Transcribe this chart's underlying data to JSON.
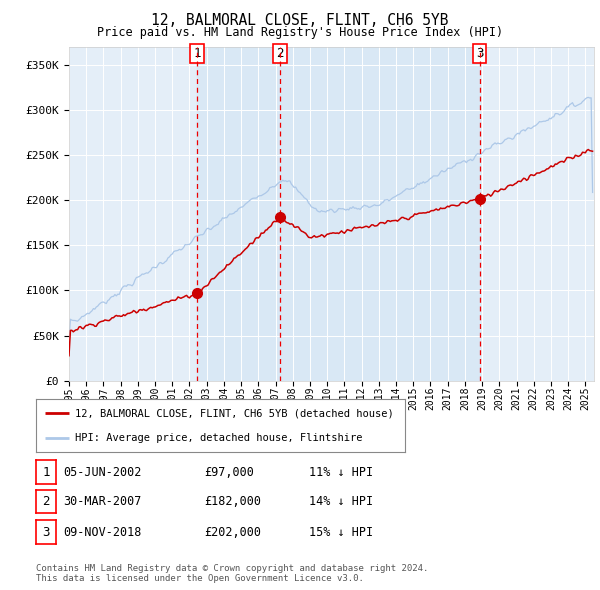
{
  "title": "12, BALMORAL CLOSE, FLINT, CH6 5YB",
  "subtitle": "Price paid vs. HM Land Registry's House Price Index (HPI)",
  "ylim": [
    0,
    370000
  ],
  "yticks": [
    0,
    50000,
    100000,
    150000,
    200000,
    250000,
    300000,
    350000
  ],
  "ytick_labels": [
    "£0",
    "£50K",
    "£100K",
    "£150K",
    "£200K",
    "£250K",
    "£300K",
    "£350K"
  ],
  "hpi_color": "#adc8e8",
  "price_color": "#cc0000",
  "marker_color": "#cc0000",
  "sale_dates_num": [
    2002.43,
    2007.24,
    2018.85
  ],
  "sale_prices": [
    97000,
    182000,
    202000
  ],
  "sale_labels": [
    "1",
    "2",
    "3"
  ],
  "vline_color": "#ee0000",
  "shaded_color": "#d8e8f5",
  "legend_property_label": "12, BALMORAL CLOSE, FLINT, CH6 5YB (detached house)",
  "legend_hpi_label": "HPI: Average price, detached house, Flintshire",
  "table_rows": [
    [
      "1",
      "05-JUN-2002",
      "£97,000",
      "11% ↓ HPI"
    ],
    [
      "2",
      "30-MAR-2007",
      "£182,000",
      "14% ↓ HPI"
    ],
    [
      "3",
      "09-NOV-2018",
      "£202,000",
      "15% ↓ HPI"
    ]
  ],
  "footer": "Contains HM Land Registry data © Crown copyright and database right 2024.\nThis data is licensed under the Open Government Licence v3.0.",
  "plot_bg_color": "#e4eef8"
}
